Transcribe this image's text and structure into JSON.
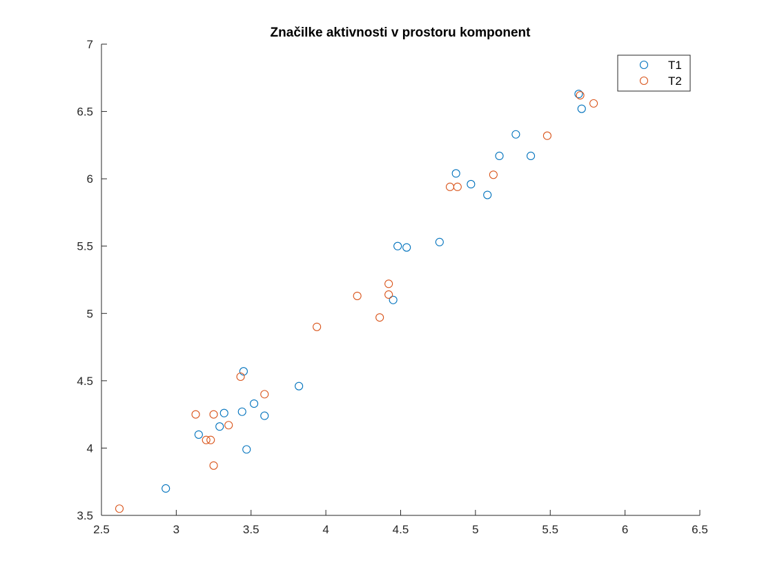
{
  "chart_data": {
    "type": "scatter",
    "title": "Značilke aktivnosti v prostoru komponent",
    "xlabel": "",
    "ylabel": "",
    "xlim": [
      2.5,
      6.5
    ],
    "ylim": [
      3.5,
      7
    ],
    "xticks": [
      "2.5",
      "3",
      "3.5",
      "4",
      "4.5",
      "5",
      "5.5",
      "6",
      "6.5"
    ],
    "yticks": [
      "3.5",
      "4",
      "4.5",
      "5",
      "5.5",
      "6",
      "6.5",
      "7"
    ],
    "grid": false,
    "legend_position": "top-right",
    "marker": "circle-open",
    "series": [
      {
        "name": "T1",
        "color": "#0072BD",
        "points": [
          [
            2.93,
            3.7
          ],
          [
            3.15,
            4.1
          ],
          [
            3.29,
            4.16
          ],
          [
            3.32,
            4.26
          ],
          [
            3.44,
            4.27
          ],
          [
            3.45,
            4.57
          ],
          [
            3.47,
            3.99
          ],
          [
            3.52,
            4.33
          ],
          [
            3.59,
            4.24
          ],
          [
            3.82,
            4.46
          ],
          [
            4.45,
            5.1
          ],
          [
            4.48,
            5.5
          ],
          [
            4.54,
            5.49
          ],
          [
            4.76,
            5.53
          ],
          [
            4.87,
            6.04
          ],
          [
            4.97,
            5.96
          ],
          [
            5.08,
            5.88
          ],
          [
            5.16,
            6.17
          ],
          [
            5.27,
            6.33
          ],
          [
            5.37,
            6.17
          ],
          [
            5.69,
            6.63
          ],
          [
            5.71,
            6.52
          ]
        ]
      },
      {
        "name": "T2",
        "color": "#D95319",
        "points": [
          [
            2.62,
            3.55
          ],
          [
            3.13,
            4.25
          ],
          [
            3.2,
            4.06
          ],
          [
            3.23,
            4.06
          ],
          [
            3.25,
            4.25
          ],
          [
            3.25,
            3.87
          ],
          [
            3.35,
            4.17
          ],
          [
            3.43,
            4.53
          ],
          [
            3.59,
            4.4
          ],
          [
            3.94,
            4.9
          ],
          [
            4.21,
            5.13
          ],
          [
            4.36,
            4.97
          ],
          [
            4.42,
            5.14
          ],
          [
            4.42,
            5.22
          ],
          [
            4.83,
            5.94
          ],
          [
            4.88,
            5.94
          ],
          [
            5.12,
            6.03
          ],
          [
            5.48,
            6.32
          ],
          [
            5.7,
            6.62
          ],
          [
            5.79,
            6.56
          ]
        ]
      }
    ]
  }
}
